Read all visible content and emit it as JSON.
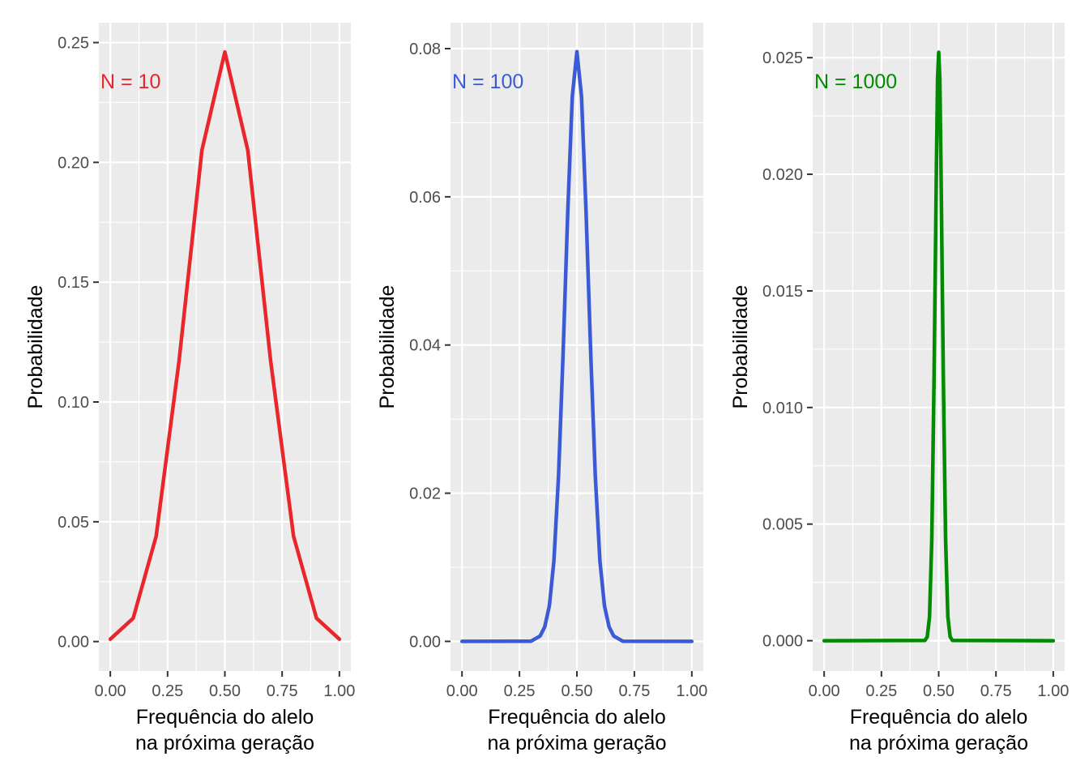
{
  "chart_data": [
    {
      "type": "line",
      "annotation": "N = 10",
      "color": "#E8262B",
      "xlabel": [
        "Frequência do alelo",
        "na próxima geração"
      ],
      "ylabel": "Probabilidade",
      "xlim": [
        -0.05,
        1.05
      ],
      "ylim": [
        -0.0123,
        0.2583
      ],
      "xticks": [
        0,
        0.25,
        0.5,
        0.75,
        1
      ],
      "xtick_labels": [
        "0.00",
        "0.25",
        "0.50",
        "0.75",
        "1.00"
      ],
      "yticks": [
        0,
        0.05,
        0.1,
        0.15,
        0.2,
        0.25
      ],
      "ytick_labels": [
        "0.00",
        "0.05",
        "0.10",
        "0.15",
        "0.20",
        "0.25"
      ],
      "grid": true,
      "legend": "none",
      "series": [
        {
          "x": [
            0,
            0.1,
            0.2,
            0.3,
            0.4,
            0.5,
            0.6,
            0.7,
            0.8,
            0.9,
            1.0
          ],
          "y": [
            0.00098,
            0.00977,
            0.04395,
            0.11719,
            0.20508,
            0.24609,
            0.20508,
            0.11719,
            0.04395,
            0.00977,
            0.00098
          ]
        }
      ]
    },
    {
      "type": "line",
      "annotation": "N = 100",
      "color": "#3B5BD6",
      "xlabel": [
        "Frequência do alelo",
        "na próxima geração"
      ],
      "ylabel": "Probabilidade",
      "xlim": [
        -0.05,
        1.05
      ],
      "ylim": [
        -0.004,
        0.0835
      ],
      "xticks": [
        0,
        0.25,
        0.5,
        0.75,
        1
      ],
      "xtick_labels": [
        "0.00",
        "0.25",
        "0.50",
        "0.75",
        "1.00"
      ],
      "yticks": [
        0,
        0.02,
        0.04,
        0.06,
        0.08
      ],
      "ytick_labels": [
        "0.00",
        "0.02",
        "0.04",
        "0.06",
        "0.08"
      ],
      "grid": true,
      "legend": "none",
      "series": [
        {
          "x": [
            0,
            0.3,
            0.34,
            0.36,
            0.38,
            0.4,
            0.42,
            0.44,
            0.46,
            0.48,
            0.5,
            0.52,
            0.54,
            0.56,
            0.58,
            0.6,
            0.62,
            0.64,
            0.66,
            0.7,
            1.0
          ],
          "y": [
            0,
            2e-05,
            0.00072,
            0.00196,
            0.0048,
            0.01084,
            0.02229,
            0.03901,
            0.05796,
            0.07353,
            0.07959,
            0.07353,
            0.05796,
            0.03901,
            0.02229,
            0.01084,
            0.0048,
            0.00196,
            0.00072,
            2e-05,
            0
          ]
        }
      ]
    },
    {
      "type": "line",
      "annotation": "N = 1000",
      "color": "#008B00",
      "xlabel": [
        "Frequência do alelo",
        "na próxima geração"
      ],
      "ylabel": "Probabilidade",
      "xlim": [
        -0.05,
        1.05
      ],
      "ylim": [
        -0.0013,
        0.0265
      ],
      "xticks": [
        0,
        0.25,
        0.5,
        0.75,
        1
      ],
      "xtick_labels": [
        "0.00",
        "0.25",
        "0.50",
        "0.75",
        "1.00"
      ],
      "yticks": [
        0,
        0.005,
        0.01,
        0.015,
        0.02,
        0.025
      ],
      "ytick_labels": [
        "0.000",
        "0.005",
        "0.010",
        "0.015",
        "0.020",
        "0.025"
      ],
      "grid": true,
      "legend": "none",
      "series": [
        {
          "x": [
            0,
            0.44,
            0.45,
            0.46,
            0.47,
            0.48,
            0.49,
            0.495,
            0.5,
            0.505,
            0.51,
            0.52,
            0.53,
            0.54,
            0.55,
            0.56,
            1.0
          ],
          "y": [
            0,
            1e-05,
            0.00017,
            0.00103,
            0.00437,
            0.01134,
            0.02037,
            0.0241,
            0.02523,
            0.0241,
            0.02037,
            0.01134,
            0.00437,
            0.00103,
            0.00017,
            1e-05,
            0
          ]
        }
      ]
    }
  ]
}
